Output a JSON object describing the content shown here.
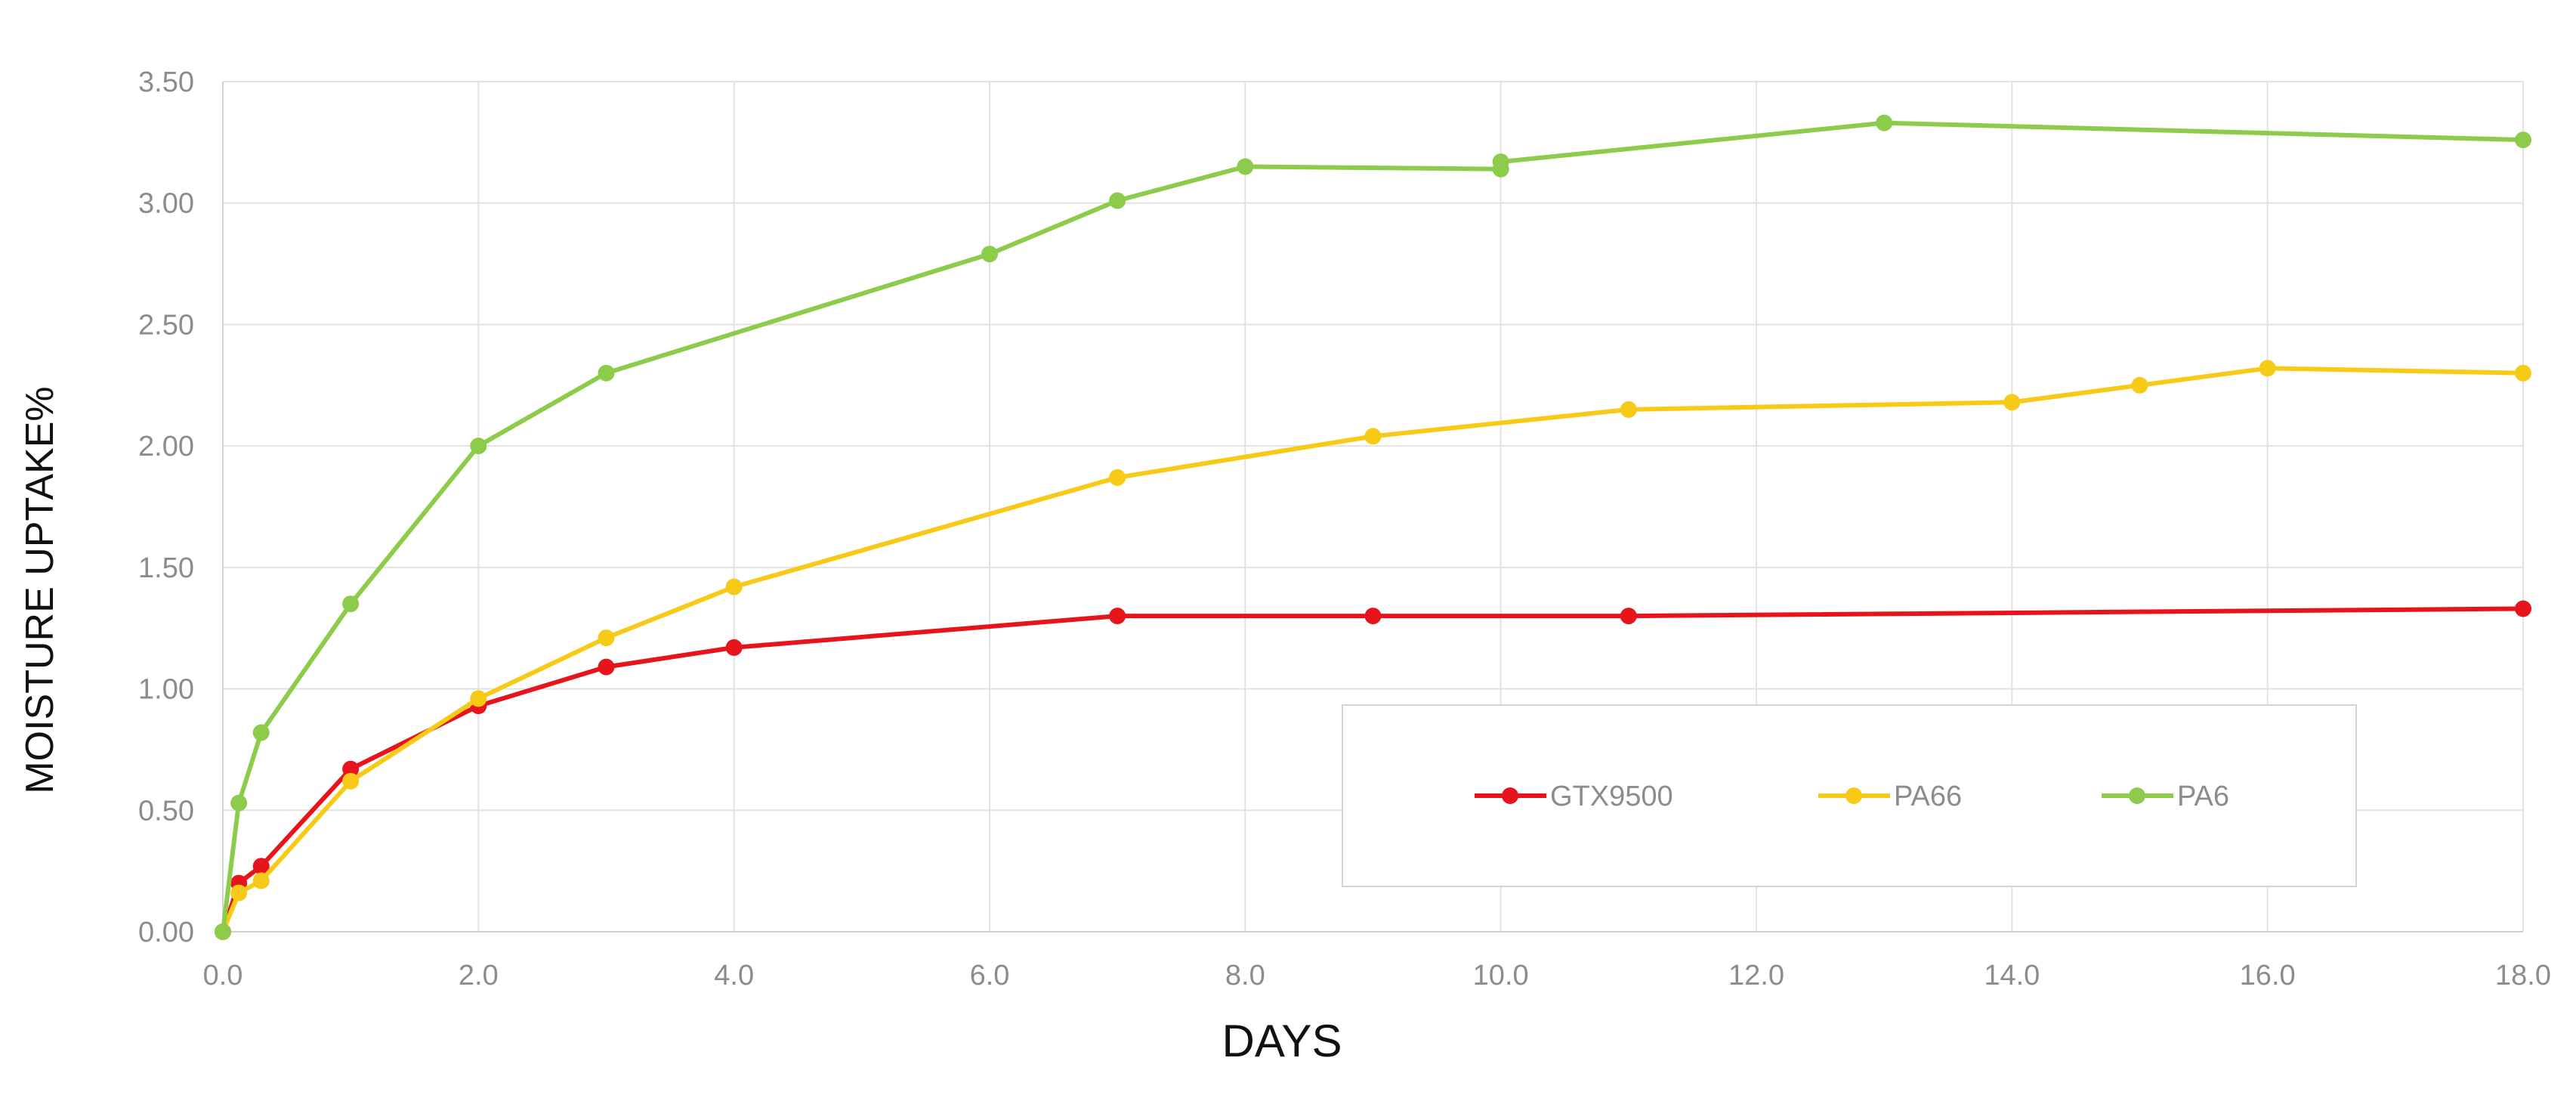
{
  "chart_data": {
    "type": "line",
    "title": "",
    "xlabel": "DAYS",
    "ylabel": "MOISTURE UPTAKE%",
    "xlim": [
      0,
      18
    ],
    "ylim": [
      0,
      3.5
    ],
    "x_ticks": [
      "0.0",
      "2.0",
      "4.0",
      "6.0",
      "8.0",
      "10.0",
      "12.0",
      "14.0",
      "16.0",
      "18.0"
    ],
    "y_ticks": [
      "0.00",
      "0.50",
      "1.00",
      "1.50",
      "2.00",
      "2.50",
      "3.00",
      "3.50"
    ],
    "grid": true,
    "legend_position": "bottom-right",
    "series": [
      {
        "name": "GTX9500",
        "color": "#e8141c",
        "points": [
          [
            0,
            0
          ],
          [
            0.125,
            0.2
          ],
          [
            0.3,
            0.27
          ],
          [
            1,
            0.67
          ],
          [
            2,
            0.93
          ],
          [
            3,
            1.09
          ],
          [
            4,
            1.17
          ],
          [
            7,
            1.3
          ],
          [
            9,
            1.3
          ],
          [
            11,
            1.3
          ],
          [
            18,
            1.33
          ]
        ]
      },
      {
        "name": "PA66",
        "color": "#f7ca18",
        "points": [
          [
            0,
            0
          ],
          [
            0.125,
            0.16
          ],
          [
            0.3,
            0.21
          ],
          [
            1,
            0.62
          ],
          [
            2,
            0.96
          ],
          [
            3,
            1.21
          ],
          [
            4,
            1.42
          ],
          [
            7,
            1.87
          ],
          [
            9,
            2.04
          ],
          [
            11,
            2.15
          ],
          [
            14,
            2.18
          ],
          [
            15,
            2.25
          ],
          [
            16,
            2.32
          ],
          [
            18,
            2.3
          ]
        ]
      },
      {
        "name": "PA6",
        "color": "#8ccc4a",
        "points": [
          [
            0,
            0
          ],
          [
            0.125,
            0.53
          ],
          [
            0.3,
            0.82
          ],
          [
            1,
            1.35
          ],
          [
            2,
            2.0
          ],
          [
            3,
            2.3
          ],
          [
            6,
            2.79
          ],
          [
            7,
            3.01
          ],
          [
            8,
            3.15
          ],
          [
            10,
            3.14
          ],
          [
            10,
            3.17
          ],
          [
            13,
            3.33
          ],
          [
            18,
            3.26
          ]
        ]
      }
    ]
  }
}
